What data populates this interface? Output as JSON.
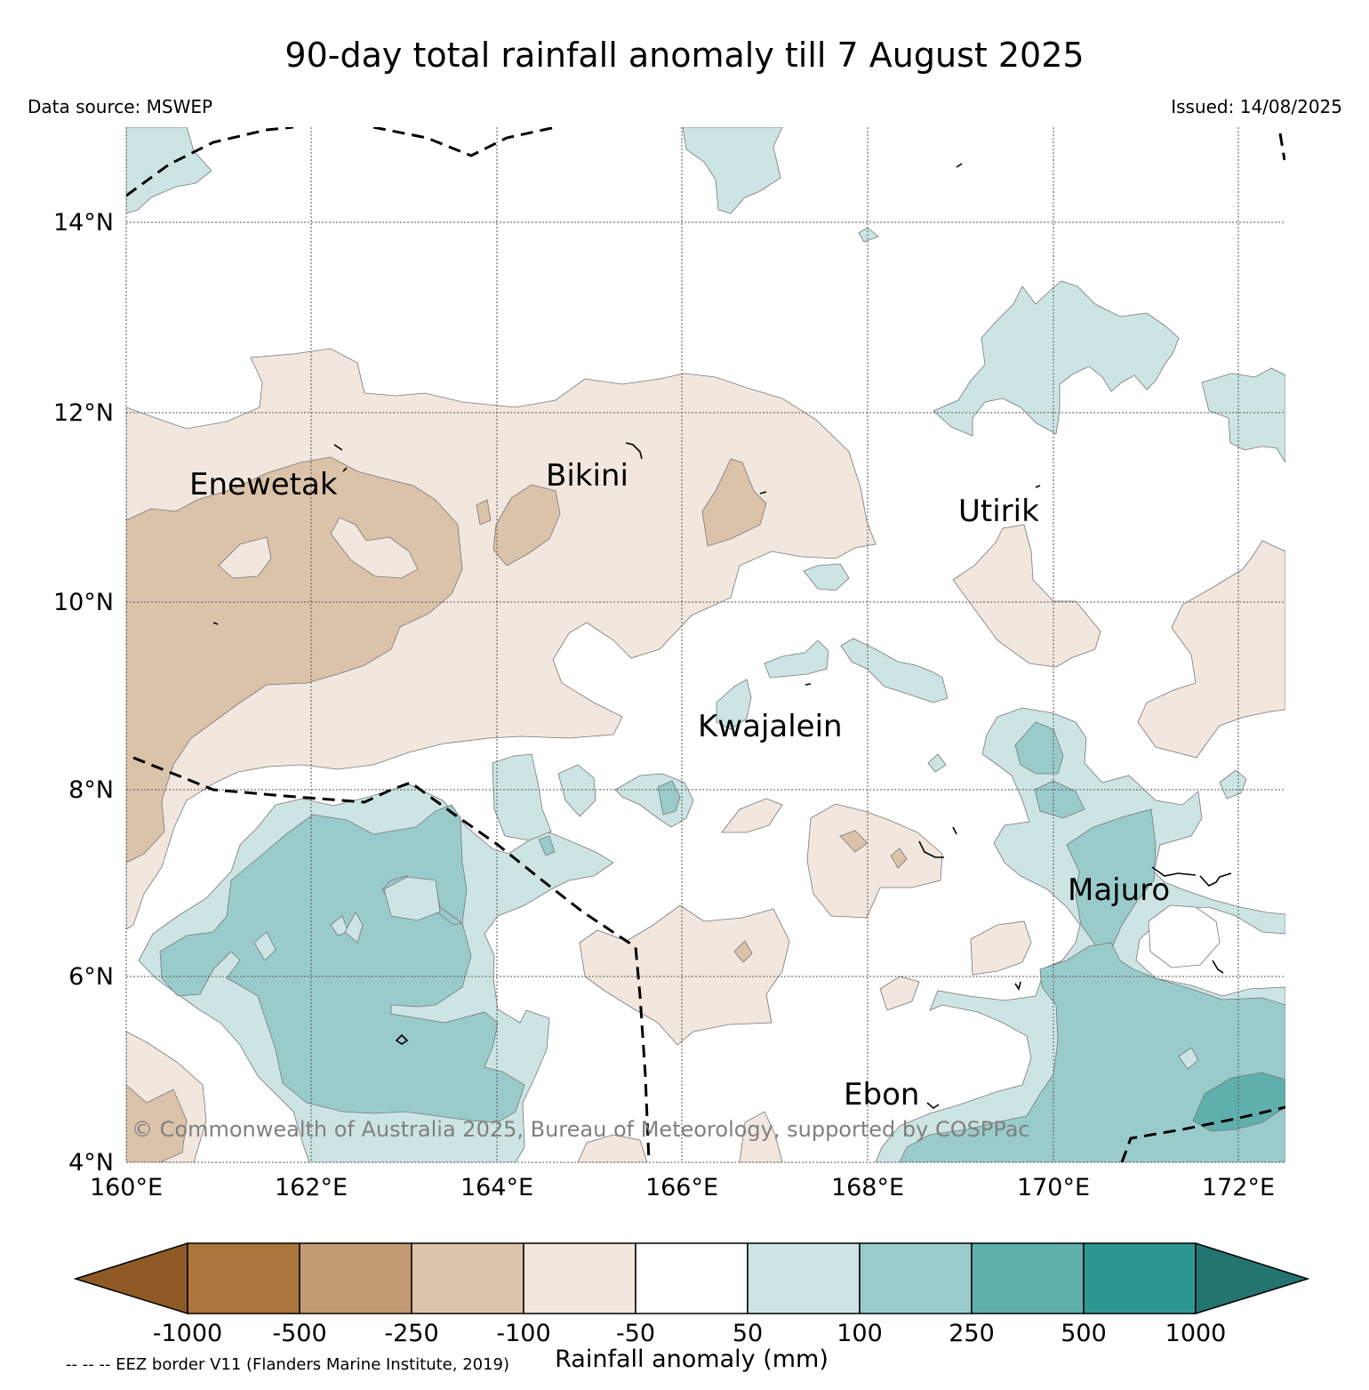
{
  "title": "90-day total rainfall anomaly till 7 August 2025",
  "data_source": "Data source: MSWEP",
  "issued": "Issued: 14/08/2025",
  "credit": "© Commonwealth of Australia 2025, Bureau of Meteorology, supported by COSPPac",
  "map": {
    "lon_ticks": [
      "160°E",
      "162°E",
      "164°E",
      "166°E",
      "168°E",
      "170°E",
      "172°E"
    ],
    "lat_ticks": [
      "14°N",
      "12°N",
      "10°N",
      "8°N",
      "6°N",
      "4°N"
    ],
    "places": [
      {
        "name": "Enewetak",
        "lon": 162.6,
        "lat": 11.5
      },
      {
        "name": "Bikini",
        "lon": 165.3,
        "lat": 11.6
      },
      {
        "name": "Utirik",
        "lon": 169.8,
        "lat": 11.2
      },
      {
        "name": "Kwajalein",
        "lon": 167.7,
        "lat": 8.72
      },
      {
        "name": "Majuro",
        "lon": 171.2,
        "lat": 7.1
      },
      {
        "name": "Ebon",
        "lon": 168.6,
        "lat": 4.6
      }
    ],
    "colors": {
      "class_lt_-1000": "#8f5a26",
      "class_-1000_-500": "#ac753d",
      "class_-500_-250": "#c39b72",
      "class_-250_-100": "#dbc3aa",
      "class_-100_-50": "#f1e7de",
      "class_-50_50": "#ffffff",
      "class_50_100": "#cce5e4",
      "class_100_250": "#9acbcb",
      "class_250_500": "#5fb0ad",
      "class_500_1000": "#2d9792",
      "class_gt_1000": "#24756f"
    }
  },
  "colorbar": {
    "label": "Rainfall anomaly (mm)",
    "tick_labels": [
      "-1000",
      "-500",
      "-250",
      "-100",
      "-50",
      "50",
      "100",
      "250",
      "500",
      "1000"
    ],
    "eez_note": "-- -- -- EEZ border V11 (Flanders Marine Institute, 2019)"
  }
}
